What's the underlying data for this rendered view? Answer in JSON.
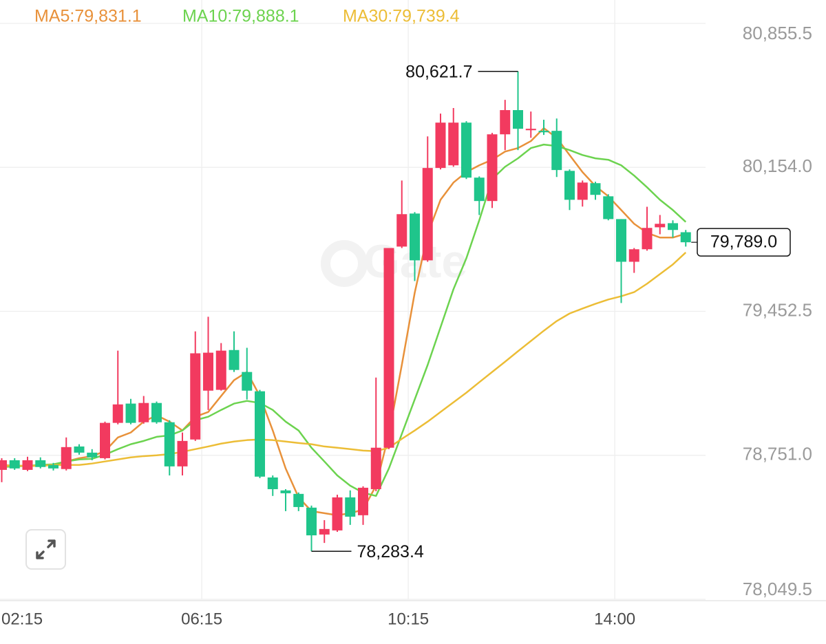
{
  "chart_data": {
    "type": "candlestick",
    "watermark": "Gate",
    "categories": [
      "02:15",
      null,
      null,
      null,
      null,
      null,
      null,
      null,
      null,
      null,
      null,
      null,
      null,
      null,
      null,
      null,
      "06:15",
      null,
      null,
      null,
      null,
      null,
      null,
      null,
      null,
      null,
      null,
      null,
      null,
      null,
      null,
      null,
      "10:15",
      null,
      null,
      null,
      null,
      null,
      null,
      null,
      null,
      null,
      null,
      null,
      null,
      null,
      null,
      null,
      "14:00",
      null,
      null,
      null,
      null,
      null
    ],
    "candles": {
      "up_color": "#f23a5f",
      "down_color": "#1fc58b",
      "open": [
        78680,
        78727,
        78680,
        78727,
        78704,
        78684,
        78794,
        78764,
        78737,
        78909,
        79003,
        78912,
        79006,
        78912,
        78697,
        78828,
        79066,
        79070,
        79264,
        79157,
        79063,
        78643,
        78580,
        78563,
        78496,
        78365,
        78385,
        78546,
        78459,
        78586,
        78788,
        79768,
        79929,
        79701,
        80151,
        80164,
        80372,
        80104,
        79990,
        80315,
        80433,
        80335,
        80332,
        80332,
        80137,
        79996,
        80077,
        80013,
        79902,
        79694,
        79755,
        79862,
        79882,
        79838
      ],
      "high": [
        78737,
        78737,
        78744,
        78741,
        78714,
        78838,
        78805,
        78781,
        78915,
        79261,
        79026,
        79040,
        79013,
        78922,
        78862,
        79355,
        79426,
        79298,
        79355,
        79275,
        79070,
        78653,
        78586,
        78570,
        78506,
        78435,
        78559,
        78580,
        78600,
        79130,
        79761,
        80090,
        79936,
        80305,
        80416,
        80443,
        80379,
        80110,
        80322,
        80483,
        80621.7,
        80426,
        80386,
        80392,
        80144,
        80090,
        80084,
        80023,
        79902,
        79761,
        79962,
        79922,
        79896,
        79849
      ],
      "low": [
        78620,
        78680,
        78674,
        78687,
        78677,
        78677,
        78754,
        78727,
        78731,
        78902,
        78902,
        78905,
        78905,
        78653,
        78653,
        78821,
        78972,
        79066,
        79157,
        79023,
        78640,
        78553,
        78479,
        78479,
        78283.4,
        78324,
        78378,
        78412,
        78412,
        78576,
        78781,
        79761,
        79600,
        79694,
        80144,
        80157,
        80097,
        79922,
        79956,
        80238,
        80238,
        80298,
        80312,
        80107,
        79946,
        79963,
        79996,
        79896,
        79493,
        79640,
        79748,
        79828,
        79812,
        79768
      ],
      "close": [
        78727,
        78687,
        78727,
        78694,
        78687,
        78791,
        78764,
        78741,
        78909,
        78999,
        78909,
        79006,
        78912,
        78697,
        78821,
        79248,
        79251,
        79261,
        79167,
        79066,
        78647,
        78586,
        78566,
        78499,
        78361,
        78392,
        78546,
        78452,
        78593,
        78788,
        79761,
        79926,
        79701,
        80151,
        80372,
        80372,
        80104,
        79990,
        80315,
        80433,
        80342,
        80342,
        80325,
        80141,
        79996,
        80080,
        80020,
        79902,
        79694,
        79755,
        79859,
        79879,
        79849,
        79789.0
      ]
    },
    "series": [
      {
        "name": "MA5:79,831.1",
        "color": "#e8913a",
        "values": [
          78704,
          78700,
          78700,
          78700,
          78704,
          78721,
          78737,
          78747,
          78771,
          78838,
          78862,
          78915,
          78946,
          78915,
          78872,
          78939,
          78962,
          79040,
          79117,
          79157,
          79040,
          78872,
          78687,
          78546,
          78479,
          78469,
          78459,
          78469,
          78486,
          78603,
          78855,
          79191,
          79543,
          79828,
          79996,
          80080,
          80131,
          80164,
          80191,
          80231,
          80248,
          80282,
          80345,
          80298,
          80214,
          80131,
          80063,
          80013,
          79946,
          79879,
          79835,
          79812,
          79812,
          79831.1
        ]
      },
      {
        "name": "MA10:79,888.1",
        "color": "#6cd34f",
        "values": [
          78694,
          78697,
          78700,
          78704,
          78707,
          78721,
          78731,
          78734,
          78754,
          78781,
          78805,
          78821,
          78841,
          78848,
          78872,
          78922,
          78939,
          78972,
          79003,
          79016,
          79006,
          78972,
          78915,
          78872,
          78788,
          78721,
          78653,
          78603,
          78569,
          78553,
          78687,
          78855,
          79023,
          79191,
          79375,
          79560,
          79711,
          79896,
          80097,
          80157,
          80198,
          80248,
          80265,
          80258,
          80238,
          80214,
          80198,
          80191,
          80164,
          80114,
          80057,
          79996,
          79946,
          79888.1
        ]
      },
      {
        "name": "MA30:79,739.4",
        "color": "#ecbd36",
        "values": [
          78700,
          78700,
          78700,
          78700,
          78704,
          78704,
          78704,
          78711,
          78721,
          78731,
          78741,
          78747,
          78751,
          78757,
          78768,
          78781,
          78794,
          78808,
          78818,
          78825,
          78828,
          78825,
          78818,
          78811,
          78805,
          78794,
          78788,
          78781,
          78774,
          78771,
          78788,
          78831,
          78872,
          78915,
          78962,
          79009,
          79056,
          79107,
          79157,
          79207,
          79258,
          79308,
          79358,
          79405,
          79442,
          79466,
          79489,
          79510,
          79526,
          79546,
          79587,
          79634,
          79681,
          79739.4
        ]
      }
    ],
    "max_label": "80,621.7",
    "min_label": "78,283.4",
    "last_label": "79,789.0",
    "ylim": [
      78049.5,
      80855.5
    ],
    "yticks": [
      {
        "value": 78049.5,
        "label": "78,049.5"
      },
      {
        "value": 78751.0,
        "label": "78,751.0"
      },
      {
        "value": 79452.5,
        "label": "79,452.5"
      },
      {
        "value": 80154.0,
        "label": "80,154.0"
      },
      {
        "value": 80855.5,
        "label": "80,855.5"
      }
    ],
    "grid": true
  }
}
